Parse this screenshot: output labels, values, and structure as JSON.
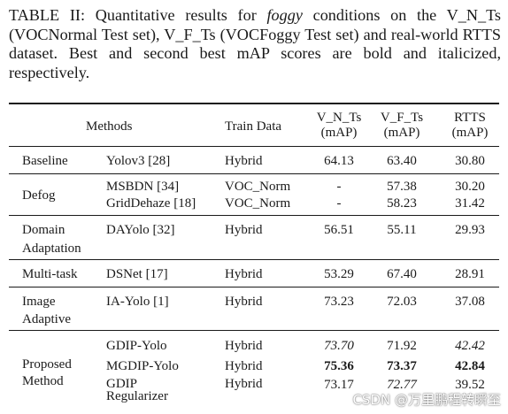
{
  "caption": {
    "lead": "TABLE II: Quantitative results for ",
    "emph": "foggy",
    "tail": " conditions on the V_N_Ts (VOCNormal Test set), V_F_Ts (VOCFoggy Test set) and real-world RTTS dataset. Best and second best mAP scores are bold and italicized, respectively."
  },
  "header": {
    "methods": "Methods",
    "train_data": "Train Data",
    "vnts": [
      "V_N_Ts",
      "(mAP)"
    ],
    "vfts": [
      "V_F_Ts",
      "(mAP)"
    ],
    "rtts": [
      "RTTS",
      "(mAP)"
    ]
  },
  "groups": [
    {
      "label": [
        "Baseline"
      ],
      "rows": [
        {
          "method": [
            "Yolov3 [28]"
          ],
          "train": "Hybrid",
          "vnts": "64.13",
          "vfts": "63.40",
          "rtts": "30.80"
        }
      ]
    },
    {
      "label": [
        "Defog"
      ],
      "rows": [
        {
          "method": [
            "MSBDN [34]"
          ],
          "train": "VOC_Norm",
          "vnts": "-",
          "vfts": "57.38",
          "rtts": "30.20"
        },
        {
          "method": [
            "GridDehaze [18]"
          ],
          "train": "VOC_Norm",
          "vnts": "-",
          "vfts": "58.23",
          "rtts": "31.42"
        }
      ]
    },
    {
      "label": [
        "Domain",
        "Adaptation"
      ],
      "rows": [
        {
          "method": [
            "DAYolo [32]"
          ],
          "train": "Hybrid",
          "vnts": "56.51",
          "vfts": "55.11",
          "rtts": "29.93"
        }
      ]
    },
    {
      "label": [
        "Multi-task"
      ],
      "rows": [
        {
          "method": [
            "DSNet [17]"
          ],
          "train": "Hybrid",
          "vnts": "53.29",
          "vfts": "67.40",
          "rtts": "28.91"
        }
      ]
    },
    {
      "label": [
        "Image",
        "Adaptive"
      ],
      "rows": [
        {
          "method": [
            "IA-Yolo [1]"
          ],
          "train": "Hybrid",
          "vnts": "73.23",
          "vfts": "72.03",
          "rtts": "37.08"
        }
      ]
    },
    {
      "label": [
        "Proposed",
        "Method"
      ],
      "rows": [
        {
          "method": [
            "GDIP-Yolo"
          ],
          "train": "Hybrid",
          "vnts": "73.70",
          "vfts": "71.92",
          "rtts": "42.42"
        },
        {
          "method": [
            "MGDIP-Yolo"
          ],
          "train": "Hybrid",
          "vnts": "75.36",
          "vfts": "73.37",
          "rtts": "42.84"
        },
        {
          "method": [
            "GDIP",
            "Regularizer"
          ],
          "train": "Hybrid",
          "vnts": "73.17",
          "vfts": "72.77",
          "rtts": "39.52"
        }
      ]
    }
  ],
  "watermark": "CSDN @万里鹏程转瞬至"
}
